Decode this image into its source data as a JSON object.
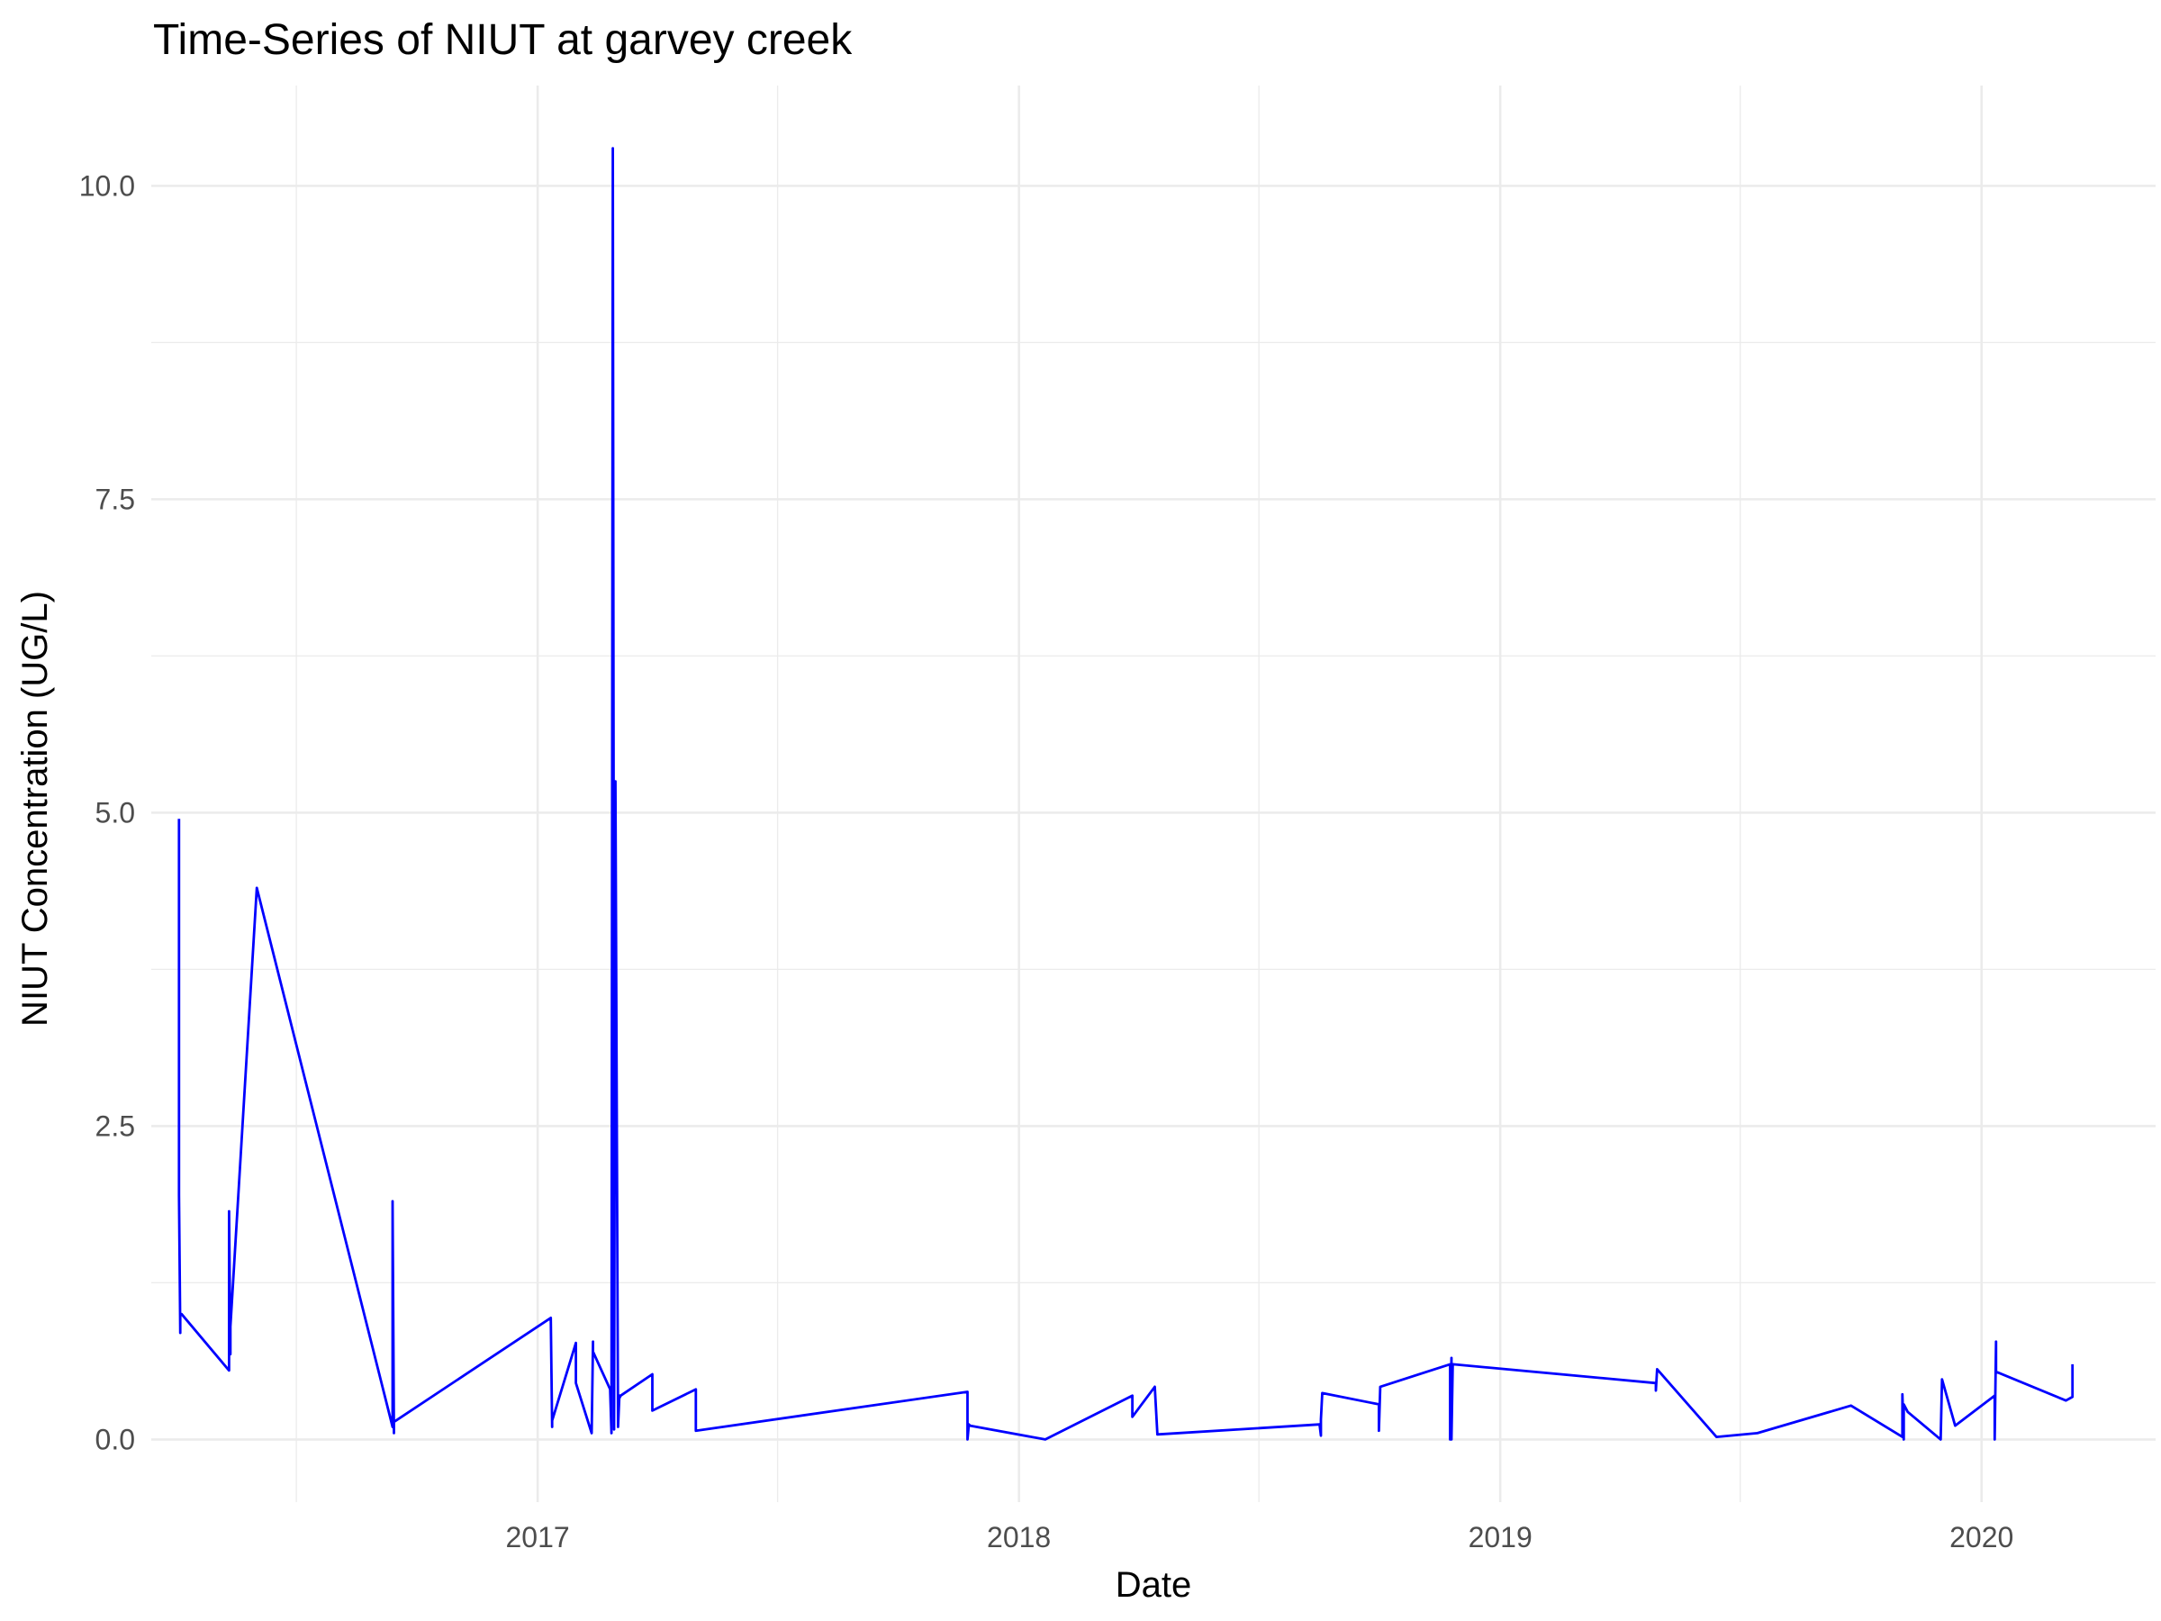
{
  "chart_data": {
    "type": "line",
    "title": "Time-Series of NIUT at garvey creek",
    "xlabel": "Date",
    "ylabel": "NIUT Concentration (UG/L)",
    "x_tick_labels": [
      "2017",
      "2018",
      "2019",
      "2020"
    ],
    "y_tick_labels": [
      "0.0",
      "2.5",
      "5.0",
      "7.5",
      "10.0"
    ],
    "y_ticks": [
      0,
      2.5,
      5,
      7.5,
      10
    ],
    "xlim": [
      "2016-03-14",
      "2020-05-12"
    ],
    "ylim": [
      -0.5,
      10.8
    ],
    "grid": true,
    "line_color": "#0000ff",
    "series": [
      {
        "x": [
          "2016-04-04",
          "2016-04-04",
          "2016-04-04",
          "2016-04-05",
          "2016-04-05",
          "2016-04-06",
          "2016-05-12",
          "2016-05-12",
          "2016-05-13",
          "2016-05-13",
          "2016-06-02",
          "2016-09-13",
          "2016-09-13",
          "2016-09-14",
          "2016-09-14",
          "2017-01-11",
          "2017-01-12",
          "2017-01-12",
          "2017-01-30",
          "2017-01-30",
          "2017-02-11",
          "2017-02-12",
          "2017-02-12",
          "2017-02-25",
          "2017-02-26",
          "2017-02-27",
          "2017-02-28",
          "2017-02-28",
          "2017-03-01",
          "2017-03-03",
          "2017-03-04",
          "2017-03-04",
          "2017-03-05",
          "2017-03-29",
          "2017-03-29",
          "2017-05-01",
          "2017-05-01",
          "2017-11-23",
          "2017-11-23",
          "2017-11-24",
          "2017-11-25",
          "2018-01-21",
          "2018-03-28",
          "2018-03-28",
          "2018-04-14",
          "2018-04-16",
          "2018-08-17",
          "2018-08-18",
          "2018-08-18",
          "2018-08-19",
          "2018-10-01",
          "2018-10-01",
          "2018-10-02",
          "2018-11-24",
          "2018-11-24",
          "2018-11-25",
          "2018-11-25",
          "2018-11-26",
          "2019-04-29",
          "2019-04-29",
          "2019-04-30",
          "2019-06-14",
          "2019-07-15",
          "2019-09-24",
          "2019-11-02",
          "2019-11-02",
          "2019-11-03",
          "2019-11-03",
          "2019-11-06",
          "2019-12-01",
          "2019-12-02",
          "2019-12-12",
          "2020-01-11",
          "2020-01-11",
          "2020-01-12",
          "2020-01-12",
          "2020-03-05",
          "2020-03-10",
          "2020-03-10"
        ],
        "y": [
          4.95,
          2.4,
          1.95,
          0.85,
          1.0,
          1.0,
          0.55,
          1.82,
          0.68,
          0.9,
          4.4,
          0.1,
          1.9,
          0.05,
          0.14,
          0.97,
          0.1,
          0.15,
          0.77,
          0.45,
          0.05,
          0.78,
          0.7,
          0.4,
          0.05,
          10.3,
          2.2,
          0.08,
          5.25,
          0.1,
          0.35,
          0.33,
          0.35,
          0.52,
          0.23,
          0.4,
          0.07,
          0.38,
          0.0,
          0.12,
          0.11,
          0.0,
          0.35,
          0.18,
          0.42,
          0.04,
          0.12,
          0.03,
          0.16,
          0.37,
          0.28,
          0.07,
          0.42,
          0.6,
          0.0,
          0.65,
          0.0,
          0.6,
          0.45,
          0.39,
          0.56,
          0.02,
          0.05,
          0.27,
          0.02,
          0.36,
          0.0,
          0.28,
          0.22,
          0.0,
          0.48,
          0.11,
          0.35,
          0.0,
          0.78,
          0.54,
          0.31,
          0.34,
          0.6
        ]
      }
    ]
  }
}
